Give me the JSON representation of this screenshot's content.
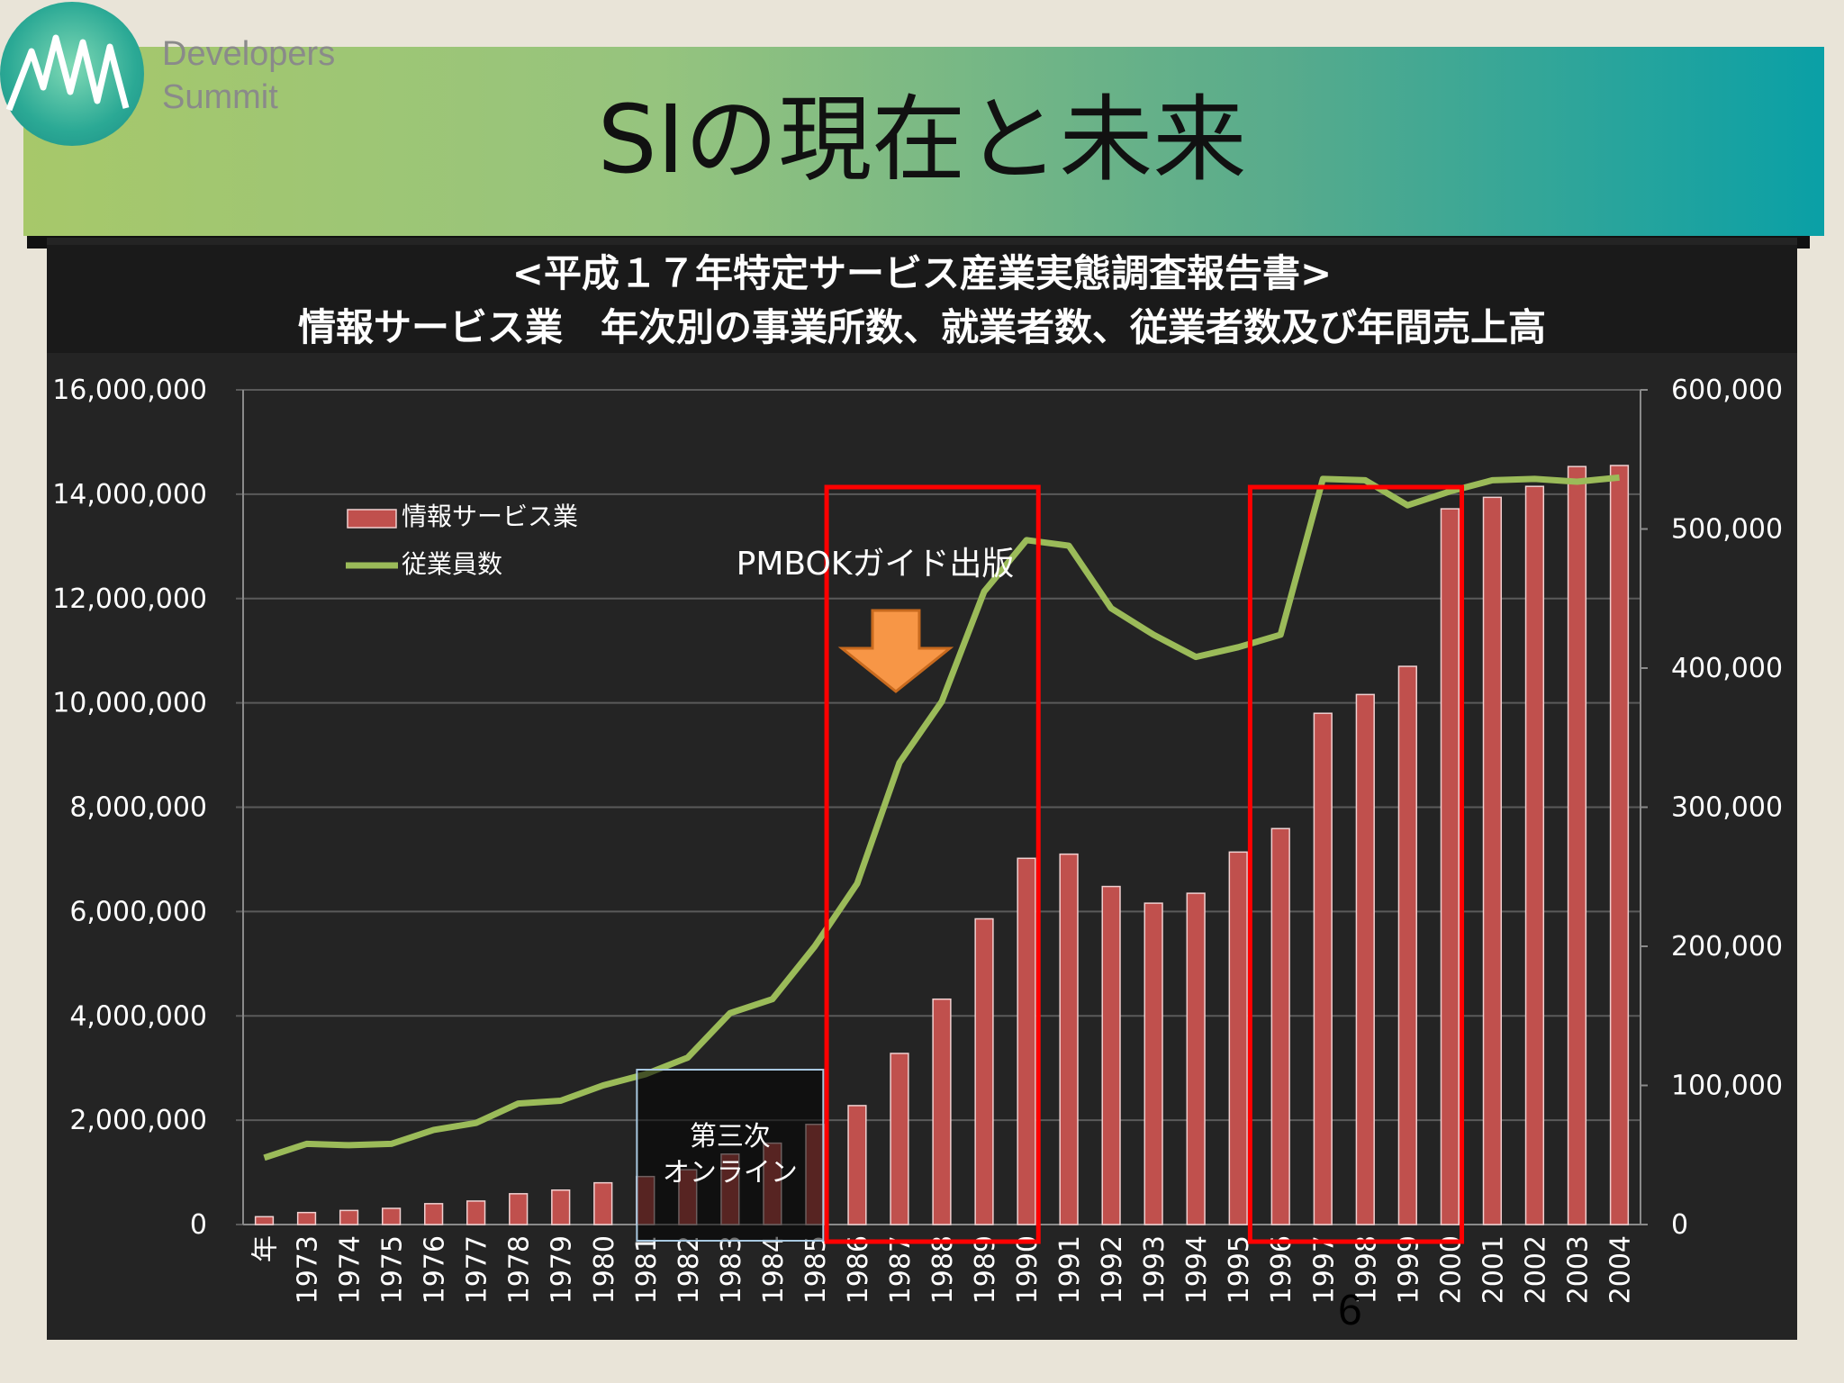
{
  "header": {
    "logo_line1": "Developers",
    "logo_line2": "Summit",
    "title": "SIの現在と未来"
  },
  "page_number": "6",
  "colors": {
    "bar": "#c0504d",
    "line": "#9bbb59",
    "highlight_box": "#ff0000",
    "arrow": "#f79646"
  },
  "chart_data": {
    "type": "bar",
    "title": "<平成１７年特定サービス産業実態調査報告書>",
    "subtitle": "情報サービス業　年次別の事業所数、就業者数、従業者数及び年間売上高",
    "categories": [
      "年",
      "1973",
      "1974",
      "1975",
      "1976",
      "1977",
      "1978",
      "1979",
      "1980",
      "1981",
      "1982",
      "1983",
      "1984",
      "1985",
      "1986",
      "1987",
      "1988",
      "1989",
      "1990",
      "1991",
      "1992",
      "1993",
      "1994",
      "1995",
      "1996",
      "1997",
      "1998",
      "1999",
      "2000",
      "2001",
      "2002",
      "2003",
      "2004"
    ],
    "y_left": {
      "min": 0,
      "max": 16000000,
      "ticks": [
        "0",
        "2,000,000",
        "4,000,000",
        "6,000,000",
        "8,000,000",
        "10,000,000",
        "12,000,000",
        "14,000,000",
        "16,000,000"
      ]
    },
    "y_right": {
      "min": 0,
      "max": 600000,
      "ticks": [
        "0",
        "100,000",
        "200,000",
        "300,000",
        "400,000",
        "500,000",
        "600,000"
      ]
    },
    "series": [
      {
        "name": "情報サービス業",
        "kind": "bar",
        "axis": "left",
        "values": [
          150000,
          230000,
          270000,
          310000,
          400000,
          450000,
          590000,
          660000,
          800000,
          920000,
          1050000,
          1350000,
          1560000,
          1920000,
          2280000,
          3280000,
          4320000,
          5860000,
          7020000,
          7100000,
          6480000,
          6160000,
          6350000,
          7140000,
          7590000,
          9800000,
          10160000,
          10700000,
          13720000,
          13940000,
          14150000,
          14530000,
          14550000
        ]
      },
      {
        "name": "従業員数",
        "kind": "line",
        "axis": "right",
        "values": [
          48000,
          58000,
          57000,
          58000,
          68000,
          73000,
          87000,
          89000,
          100000,
          108000,
          120000,
          152000,
          162000,
          200000,
          245000,
          332000,
          376000,
          455000,
          492000,
          488000,
          443000,
          424000,
          408000,
          415000,
          424000,
          536000,
          535000,
          517000,
          527000,
          535000,
          536000,
          534000,
          537000
        ]
      }
    ],
    "annotations": [
      {
        "label": "PMBOKガイド出版",
        "category": "1987"
      },
      {
        "label": "第三次\nオンライン",
        "from": "1981",
        "to": "1985"
      }
    ],
    "highlight_ranges": [
      {
        "from": "1986",
        "to": "1990"
      },
      {
        "from": "1996",
        "to": "2000"
      }
    ],
    "legend_position": "top-left",
    "grid": true
  }
}
